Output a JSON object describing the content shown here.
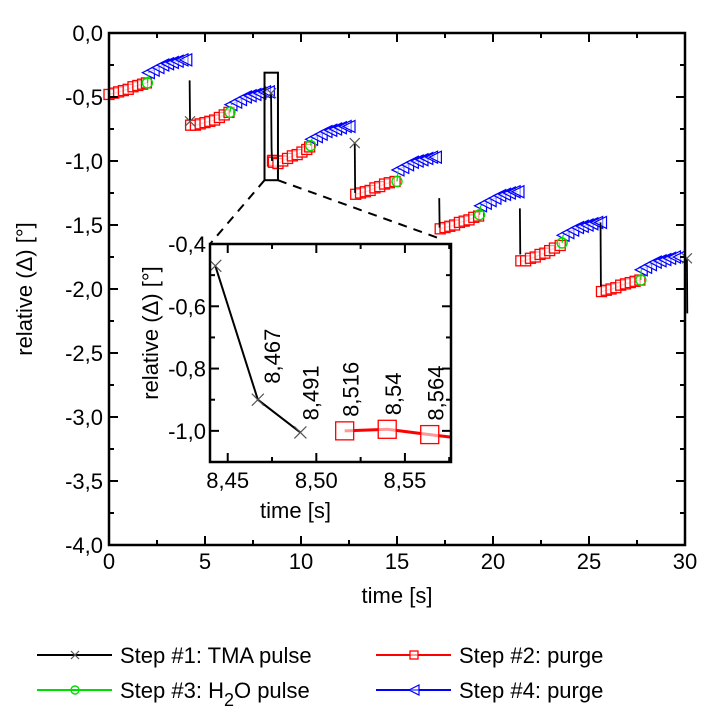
{
  "chart_data": [
    {
      "id": "main",
      "type": "scatter",
      "title": "",
      "xlabel": "time [s]",
      "ylabel": "relative (Δ) [°]",
      "xlim": [
        0,
        30
      ],
      "ylim": [
        -4.0,
        0.0
      ],
      "xticks": [
        0,
        5,
        10,
        15,
        20,
        25,
        30
      ],
      "xtick_labels": [
        "0",
        "5",
        "10",
        "15",
        "20",
        "25",
        "30"
      ],
      "yticks": [
        0.0,
        -0.5,
        -1.0,
        -1.5,
        -2.0,
        -2.5,
        -3.0,
        -3.5,
        -4.0
      ],
      "ytick_labels": [
        "0,0",
        "-0,5",
        "-1,0",
        "-1,5",
        "-2,0",
        "-2,5",
        "-3,0",
        "-3,5",
        "-4,0"
      ],
      "grid": false,
      "legend_position": "bottom",
      "series": [
        {
          "name": "Step #1: TMA pulse",
          "color": "#000000",
          "marker": "x",
          "segments": [
            {
              "x": [
                4.2,
                4.22
              ],
              "y": [
                -0.37,
                -0.69
              ]
            },
            {
              "x": [
                8.44,
                8.467,
                8.491
              ],
              "y": [
                -0.47,
                -0.9,
                -1.0
              ]
            },
            {
              "x": [
                12.8,
                12.82
              ],
              "y": [
                -0.86,
                -1.25
              ]
            },
            {
              "x": [
                17.2,
                17.22
              ],
              "y": [
                -1.29,
                -1.52
              ]
            },
            {
              "x": [
                21.4,
                21.42
              ],
              "y": [
                -1.37,
                -1.73
              ]
            },
            {
              "x": [
                25.6,
                25.62
              ],
              "y": [
                -1.48,
                -1.98
              ]
            },
            {
              "x": [
                30.1,
                30.12
              ],
              "y": [
                -1.76,
                -2.19
              ]
            }
          ]
        },
        {
          "name": "Step #2: purge",
          "color": "#ff0000",
          "marker": "square",
          "segments": [
            {
              "x": [
                0.0,
                0.25,
                0.5,
                0.75,
                1.0,
                1.25,
                1.5,
                1.75,
                1.95
              ],
              "y": [
                -0.48,
                -0.47,
                -0.46,
                -0.45,
                -0.44,
                -0.42,
                -0.41,
                -0.4,
                -0.39
              ]
            },
            {
              "x": [
                4.25,
                4.5,
                4.75,
                5.0,
                5.25,
                5.5,
                5.75,
                6.0,
                6.25
              ],
              "y": [
                -0.72,
                -0.72,
                -0.71,
                -0.7,
                -0.69,
                -0.68,
                -0.66,
                -0.64,
                -0.62
              ]
            },
            {
              "x": [
                8.516,
                8.54,
                8.564,
                8.8,
                9.05,
                9.3,
                9.55,
                9.8,
                10.05,
                10.3,
                10.45
              ],
              "y": [
                -1.0,
                -0.995,
                -1.01,
                -1.02,
                -1.0,
                -0.98,
                -0.96,
                -0.95,
                -0.93,
                -0.91,
                -0.89
              ]
            },
            {
              "x": [
                12.85,
                13.1,
                13.35,
                13.6,
                13.85,
                14.1,
                14.35,
                14.6,
                14.9
              ],
              "y": [
                -1.26,
                -1.25,
                -1.24,
                -1.23,
                -1.21,
                -1.2,
                -1.18,
                -1.17,
                -1.16
              ]
            },
            {
              "x": [
                17.25,
                17.5,
                17.75,
                18.0,
                18.25,
                18.5,
                18.75,
                19.0,
                19.25
              ],
              "y": [
                -1.53,
                -1.52,
                -1.51,
                -1.5,
                -1.48,
                -1.47,
                -1.46,
                -1.44,
                -1.43
              ]
            },
            {
              "x": [
                21.45,
                21.7,
                21.95,
                22.2,
                22.45,
                22.7,
                22.95,
                23.2,
                23.5
              ],
              "y": [
                -1.78,
                -1.78,
                -1.76,
                -1.75,
                -1.73,
                -1.72,
                -1.7,
                -1.68,
                -1.66
              ]
            },
            {
              "x": [
                25.65,
                25.9,
                26.15,
                26.4,
                26.65,
                26.9,
                27.15,
                27.4,
                27.65
              ],
              "y": [
                -2.02,
                -2.01,
                -2.0,
                -1.99,
                -1.97,
                -1.96,
                -1.95,
                -1.94,
                -1.93
              ]
            }
          ]
        },
        {
          "name": "Step #3: H2O pulse",
          "color": "#00dd00",
          "marker": "circle",
          "segments": [
            {
              "x": [
                2.0,
                2.05
              ],
              "y": [
                -0.39,
                -0.33
              ]
            },
            {
              "x": [
                6.3,
                6.35
              ],
              "y": [
                -0.62,
                -0.57
              ]
            },
            {
              "x": [
                10.5,
                10.55
              ],
              "y": [
                -0.88,
                -0.83
              ]
            },
            {
              "x": [
                15.0,
                15.05
              ],
              "y": [
                -1.16,
                -1.08
              ]
            },
            {
              "x": [
                19.3,
                19.35
              ],
              "y": [
                -1.42,
                -1.35
              ]
            },
            {
              "x": [
                23.6,
                23.65
              ],
              "y": [
                -1.64,
                -1.58
              ]
            },
            {
              "x": [
                27.7,
                27.72
              ],
              "y": [
                -1.93,
                -1.85
              ]
            }
          ]
        },
        {
          "name": "Step #4: purge",
          "color": "#0000ff",
          "marker": "triangle-left",
          "segments": [
            {
              "x": [
                2.05,
                2.3,
                2.55,
                2.8,
                3.05,
                3.3,
                3.55,
                3.8,
                4.0
              ],
              "y": [
                -0.31,
                -0.29,
                -0.27,
                -0.25,
                -0.24,
                -0.23,
                -0.22,
                -0.21,
                -0.21
              ]
            },
            {
              "x": [
                6.35,
                6.6,
                6.85,
                7.1,
                7.35,
                7.6,
                7.85,
                8.1,
                8.3
              ],
              "y": [
                -0.56,
                -0.54,
                -0.52,
                -0.5,
                -0.49,
                -0.48,
                -0.47,
                -0.46,
                -0.46
              ]
            },
            {
              "x": [
                10.55,
                10.8,
                11.05,
                11.3,
                11.55,
                11.8,
                12.05,
                12.3,
                12.5
              ],
              "y": [
                -0.83,
                -0.81,
                -0.79,
                -0.77,
                -0.76,
                -0.75,
                -0.74,
                -0.73,
                -0.73
              ]
            },
            {
              "x": [
                15.05,
                15.3,
                15.55,
                15.8,
                16.05,
                16.3,
                16.55,
                16.8,
                17.0
              ],
              "y": [
                -1.07,
                -1.05,
                -1.03,
                -1.01,
                -1.0,
                -0.99,
                -0.98,
                -0.97,
                -0.97
              ]
            },
            {
              "x": [
                19.35,
                19.6,
                19.85,
                20.1,
                20.35,
                20.6,
                20.85,
                21.1,
                21.3
              ],
              "y": [
                -1.35,
                -1.33,
                -1.31,
                -1.29,
                -1.27,
                -1.26,
                -1.25,
                -1.24,
                -1.24
              ]
            },
            {
              "x": [
                23.65,
                23.9,
                24.15,
                24.4,
                24.65,
                24.9,
                25.15,
                25.4,
                25.6
              ],
              "y": [
                -1.58,
                -1.56,
                -1.54,
                -1.52,
                -1.51,
                -1.5,
                -1.49,
                -1.48,
                -1.48
              ]
            },
            {
              "x": [
                27.72,
                27.95,
                28.2,
                28.45,
                28.7,
                28.95,
                29.2,
                29.45,
                29.7
              ],
              "y": [
                -1.85,
                -1.83,
                -1.81,
                -1.79,
                -1.78,
                -1.77,
                -1.76,
                -1.75,
                -1.75
              ]
            }
          ]
        }
      ],
      "zoom_box": {
        "x": [
          8.1,
          8.8
        ],
        "y": [
          -0.31,
          -1.15
        ]
      }
    },
    {
      "id": "inset",
      "type": "line",
      "title": "",
      "xlabel": "time [s]",
      "ylabel": "relative (Δ) [°]",
      "xlim": [
        8.44,
        8.576
      ],
      "ylim": [
        -1.1,
        -0.4
      ],
      "xticks": [
        8.45,
        8.5,
        8.55
      ],
      "xtick_labels": [
        "8,45",
        "8,50",
        "8,55"
      ],
      "yticks": [
        -0.4,
        -0.6,
        -0.8,
        -1.0
      ],
      "ytick_labels": [
        "-0,4",
        "-0,6",
        "-0,8",
        "-1,0"
      ],
      "grid": false,
      "series": [
        {
          "name": "Step #1: TMA pulse",
          "color": "#000000",
          "marker": "x",
          "x": [
            8.443,
            8.467,
            8.491
          ],
          "y": [
            -0.47,
            -0.9,
            -1.005
          ]
        },
        {
          "name": "Step #2: purge",
          "color": "#ff0000",
          "marker": "square",
          "x": [
            8.516,
            8.54,
            8.564,
            8.576
          ],
          "y": [
            -1.0,
            -0.995,
            -1.012,
            -1.02
          ]
        }
      ],
      "annotations": [
        {
          "text": "8,467",
          "x": 8.467,
          "y": -0.9
        },
        {
          "text": "8,491",
          "x": 8.491,
          "y": -1.005
        },
        {
          "text": "8,516",
          "x": 8.516,
          "y": -1.0
        },
        {
          "text": "8,54",
          "x": 8.54,
          "y": -0.995
        },
        {
          "text": "8,564",
          "x": 8.564,
          "y": -1.012
        }
      ]
    }
  ],
  "legend": {
    "items": [
      {
        "label_pre": "Step #1: TMA pulse",
        "sub": "",
        "label_post": "",
        "color": "#000000",
        "marker": "x"
      },
      {
        "label_pre": "Step #2: purge",
        "sub": "",
        "label_post": "",
        "color": "#ff0000",
        "marker": "square"
      },
      {
        "label_pre": "Step #3: H",
        "sub": "2",
        "label_post": "O pulse",
        "color": "#00dd00",
        "marker": "circle"
      },
      {
        "label_pre": "Step #4: purge",
        "sub": "",
        "label_post": "",
        "color": "#0000ff",
        "marker": "triangle-left"
      }
    ]
  }
}
